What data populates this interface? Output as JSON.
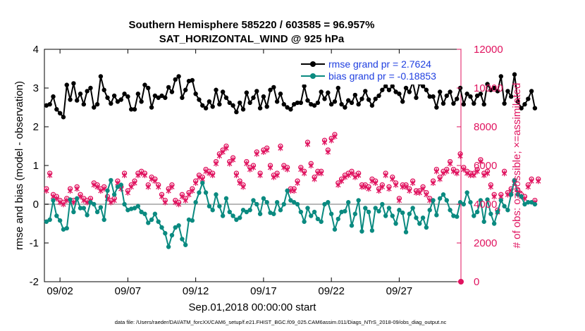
{
  "title_line1": "Southern Hemisphere 585220 / 603585 = 96.957%",
  "title_line2": "SAT_HORIZONTAL_WIND @ 925 hPa",
  "xlabel": "Sep.01,2018 00:00:00 start",
  "ylabel_left": "rmse and bias (model - observation)",
  "ylabel_right": "# of obs: o=possible; ×=assimilated",
  "footer": "data file: /Users/raeder/DAI/ATM_forcXX/CAM6_setup/f.e21.FHIST_BGC.f09_025.CAM6assim.011/Diags_NTrS_2018-09/obs_diag_output.nc",
  "legend": [
    {
      "label": "rmse grand pr = 2.7624",
      "color": "#000000"
    },
    {
      "label": "bias grand pr = -0.18853",
      "color": "#0a8a80"
    }
  ],
  "colors": {
    "rmse": "#000000",
    "bias": "#0a8a80",
    "obs": "#e0135f",
    "zero": "#b9b9b9"
  },
  "chart_data": {
    "type": "line",
    "x_start": 0.25,
    "x_step": 0.25,
    "xlim": [
      0.1,
      30.8
    ],
    "ylim_left": [
      -2,
      4
    ],
    "ylim_right": [
      0,
      12000
    ],
    "yticks_left": [
      "-2",
      "-1",
      "0",
      "1",
      "2",
      "3",
      "4"
    ],
    "yticks_right": [
      "0",
      "2000",
      "4000",
      "6000",
      "8000",
      "10000",
      "12000"
    ],
    "xticks": [
      {
        "pos": 1.25,
        "label": "09/02"
      },
      {
        "pos": 6.25,
        "label": "09/07"
      },
      {
        "pos": 11.25,
        "label": "09/12"
      },
      {
        "pos": 16.25,
        "label": "09/17"
      },
      {
        "pos": 21.25,
        "label": "09/22"
      },
      {
        "pos": 26.25,
        "label": "09/27"
      }
    ],
    "series": [
      {
        "name": "rmse",
        "axis": "left",
        "marker": "dot",
        "values": [
          2.55,
          2.58,
          2.78,
          2.45,
          2.35,
          2.25,
          3.08,
          2.7,
          3.12,
          2.68,
          2.85,
          2.58,
          2.92,
          3.0,
          2.5,
          2.58,
          3.3,
          2.95,
          2.75,
          2.6,
          2.8,
          2.65,
          2.7,
          2.85,
          2.78,
          2.45,
          2.45,
          2.85,
          2.65,
          3.08,
          3.0,
          2.5,
          2.8,
          2.75,
          2.8,
          2.75,
          3.02,
          2.9,
          3.22,
          3.3,
          2.75,
          2.95,
          3.18,
          3.2,
          2.85,
          2.7,
          2.55,
          2.48,
          2.65,
          2.52,
          2.95,
          2.58,
          2.9,
          2.75,
          2.62,
          2.55,
          2.38,
          2.62,
          2.45,
          2.88,
          2.62,
          2.75,
          2.92,
          2.48,
          2.78,
          2.52,
          2.95,
          3.02,
          2.65,
          2.85,
          2.58,
          2.5,
          2.45,
          2.58,
          2.62,
          2.62,
          3.05,
          2.68,
          2.58,
          2.55,
          2.62,
          2.9,
          2.72,
          2.88,
          2.58,
          2.65,
          3.0,
          2.58,
          2.5,
          2.68,
          2.62,
          2.82,
          2.58,
          2.72,
          2.92,
          2.7,
          2.55,
          2.72,
          2.8,
          2.95,
          3.05,
          2.95,
          3.05,
          2.9,
          2.85,
          2.65,
          3.0,
          2.9,
          3.15,
          2.75,
          3.12,
          3.05,
          2.95,
          2.78,
          2.78,
          2.5,
          2.9,
          2.6,
          2.8,
          2.9,
          2.6,
          2.72,
          3.0,
          2.58,
          2.85,
          2.78,
          2.6,
          2.8,
          2.85,
          2.58,
          3.1,
          2.95,
          3.0,
          2.92,
          3.3,
          2.6,
          2.92,
          2.78,
          3.35,
          2.65,
          2.48,
          2.58,
          2.72,
          2.92,
          2.48
        ]
      },
      {
        "name": "bias",
        "axis": "left",
        "marker": "dot",
        "values": [
          -0.45,
          -0.4,
          0.1,
          -0.3,
          -0.42,
          -0.65,
          -0.62,
          0.12,
          -0.2,
          0.15,
          -0.1,
          -0.1,
          -0.28,
          0.05,
          0.0,
          -0.2,
          -0.08,
          -0.4,
          0.35,
          0.62,
          0.25,
          0.45,
          0.5,
          0.0,
          -0.15,
          -0.12,
          -0.1,
          -0.05,
          -0.2,
          -0.25,
          -0.48,
          -0.4,
          -0.25,
          -0.45,
          -0.6,
          -0.75,
          -1.1,
          -0.8,
          -0.6,
          -0.55,
          -0.9,
          -1.05,
          -0.4,
          -0.42,
          0.05,
          0.3,
          0.55,
          0.3,
          -0.05,
          -0.15,
          0.25,
          -0.05,
          -0.3,
          0.15,
          -0.2,
          -0.3,
          -0.4,
          -0.35,
          -0.15,
          -0.2,
          -0.15,
          0.1,
          0.0,
          -0.25,
          0.15,
          0.05,
          -0.22,
          -0.25,
          0.05,
          -0.15,
          0.0,
          0.35,
          0.1,
          0.05,
          0.0,
          -0.2,
          -0.45,
          -0.1,
          -0.3,
          -0.2,
          -0.38,
          -0.45,
          0.0,
          0.05,
          -0.25,
          -0.65,
          -0.38,
          -0.2,
          -0.18,
          0.05,
          -0.55,
          -0.25,
          0.1,
          -0.7,
          -0.1,
          -0.2,
          -0.68,
          -0.1,
          -0.18,
          0.0,
          -0.3,
          -0.1,
          -0.3,
          -0.5,
          -0.15,
          -0.22,
          -0.72,
          -0.25,
          -0.1,
          -0.35,
          -0.5,
          -0.35,
          -0.6,
          -0.15,
          0.1,
          -0.28,
          0.15,
          0.25,
          0.1,
          -0.15,
          -0.3,
          -0.32,
          0.05,
          0.0,
          0.3,
          0.05,
          -0.3,
          -0.2,
          0.1,
          -0.45,
          0.12,
          -0.25,
          -0.5,
          -0.2,
          0.1,
          -0.05,
          -0.15,
          0.25,
          0.62,
          0.25,
          0.2,
          0.0,
          0.05,
          0.05,
          0.0
        ]
      },
      {
        "name": "obs_possible",
        "axis": "right",
        "marker": "circle",
        "values": [
          4800,
          5600,
          4500,
          4400,
          4200,
          4100,
          4300,
          4800,
          4200,
          4900,
          4500,
          4300,
          4200,
          4300,
          5100,
          5000,
          4800,
          4900,
          4400,
          4200,
          4300,
          5200,
          4900,
          5600,
          4700,
          5000,
          5200,
          5600,
          5700,
          5600,
          5000,
          5400,
          5300,
          5000,
          4500,
          4200,
          4800,
          5000,
          4200,
          4100,
          4500,
          4300,
          4600,
          4800,
          5200,
          5500,
          5400,
          5800,
          5700,
          5600,
          6200,
          6600,
          6800,
          7000,
          6200,
          6400,
          5600,
          5200,
          5000,
          6200,
          5900,
          6000,
          6700,
          5600,
          6800,
          6900,
          6000,
          5500,
          5600,
          7000,
          6000,
          5900,
          4800,
          4800,
          5200,
          5900,
          5700,
          7200,
          6100,
          5400,
          5700,
          5700,
          7300,
          6800,
          7400,
          7600,
          5100,
          5300,
          5500,
          5600,
          5700,
          5500,
          5600,
          5000,
          5000,
          4900,
          5300,
          5200,
          4800,
          5000,
          5600,
          4900,
          5400,
          5100,
          4300,
          5000,
          5000,
          4800,
          5200,
          4700,
          4700,
          4900,
          4600,
          4300,
          5200,
          5800,
          5400,
          5700,
          5800,
          6200,
          5800,
          5700,
          6600,
          5900,
          5700,
          5600,
          5600,
          5800,
          6300,
          5600,
          5700,
          5000,
          4500,
          3700,
          4500,
          5700,
          4600,
          4800,
          5200,
          4700,
          4500,
          4400,
          5000,
          5300,
          4200,
          5300
        ]
      },
      {
        "name": "obs_assimilated",
        "axis": "right",
        "marker": "x",
        "values": [
          4700,
          5500,
          4400,
          4300,
          4100,
          4000,
          4200,
          4700,
          4100,
          4800,
          4400,
          4200,
          4100,
          4200,
          5000,
          4900,
          4700,
          4800,
          4300,
          4100,
          4200,
          5100,
          4800,
          5500,
          4600,
          4900,
          5100,
          5500,
          5600,
          5500,
          4900,
          5300,
          5200,
          4900,
          4400,
          4100,
          4700,
          4900,
          4100,
          4000,
          4400,
          4200,
          4500,
          4700,
          5100,
          5400,
          5300,
          5700,
          5600,
          5500,
          6100,
          6500,
          6700,
          6900,
          6100,
          6300,
          5500,
          5100,
          4900,
          6100,
          5800,
          5900,
          6600,
          5500,
          6700,
          6800,
          5900,
          5400,
          5500,
          6900,
          5900,
          5800,
          4700,
          4700,
          5100,
          5800,
          5600,
          7100,
          6000,
          5300,
          5600,
          5600,
          7200,
          6700,
          7300,
          7500,
          5000,
          5200,
          5400,
          5500,
          5600,
          5400,
          5500,
          4900,
          4900,
          4800,
          5200,
          5100,
          4700,
          4900,
          5500,
          4800,
          5300,
          5000,
          4200,
          4900,
          4900,
          4700,
          5100,
          4600,
          4600,
          4800,
          4500,
          4200,
          5100,
          5700,
          5300,
          5600,
          5700,
          6100,
          5700,
          5600,
          6500,
          5800,
          5600,
          5500,
          5500,
          5700,
          6200,
          5500,
          5600,
          4900,
          4400,
          3600,
          4400,
          5600,
          4500,
          4700,
          5100,
          4600,
          4400,
          4300,
          4900,
          5200,
          4100,
          5200
        ]
      }
    ]
  }
}
